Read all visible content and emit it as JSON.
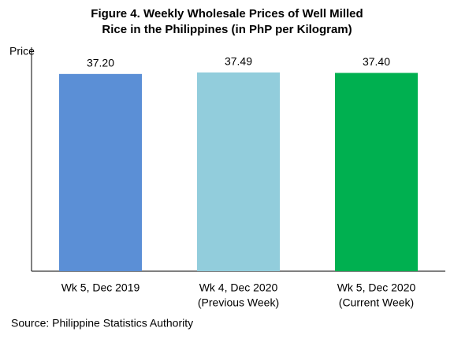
{
  "chart_data": {
    "type": "bar",
    "title": [
      "Figure 4. Weekly Wholesale Prices of Well Milled",
      "Rice in the Philippines (in PhP per Kilogram)"
    ],
    "y_label": "Price",
    "categories": [
      [
        "Wk 5, Dec 2019"
      ],
      [
        "Wk 4, Dec 2020",
        "(Previous Week)"
      ],
      [
        "Wk 5, Dec 2020",
        "(Current Week)"
      ]
    ],
    "values": [
      37.2,
      37.49,
      37.4
    ],
    "value_labels": [
      "37.20",
      "37.49",
      "37.40"
    ],
    "colors": [
      "#5b8fd6",
      "#92cddc",
      "#00b050"
    ],
    "ylim": [
      0,
      40
    ],
    "source": "Source: Philippine Statistics Authority"
  }
}
